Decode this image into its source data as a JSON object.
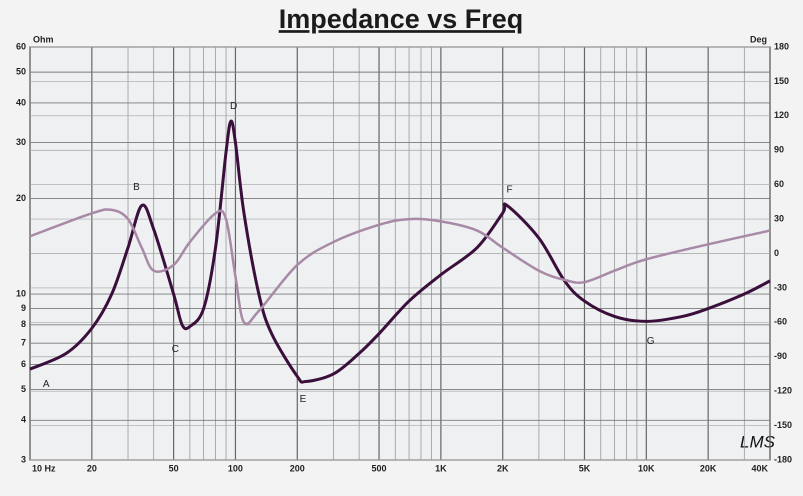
{
  "chart_data": {
    "type": "line",
    "title": "Impedance vs Freq",
    "y_label": "Ohm",
    "y2_label": "Deg",
    "signature": "LMS",
    "log_x": true,
    "log_y": true,
    "grid": true,
    "xlim": [
      10,
      40000
    ],
    "xticks": [
      {
        "value": 10,
        "label": "10 Hz"
      },
      20,
      50,
      100,
      200,
      500,
      {
        "value": 1000,
        "label": "1K"
      },
      {
        "value": 2000,
        "label": "2K"
      },
      {
        "value": 5000,
        "label": "5K"
      },
      {
        "value": 10000,
        "label": "10K"
      },
      {
        "value": 20000,
        "label": "20K"
      },
      {
        "value": 40000,
        "label": "40K"
      }
    ],
    "x_minor_ticks": [
      30,
      40,
      60,
      70,
      80,
      90,
      300,
      400,
      600,
      700,
      800,
      900,
      3000,
      4000,
      6000,
      7000,
      8000,
      9000,
      30000
    ],
    "ylim": [
      3,
      60
    ],
    "yticks": [
      3,
      4,
      5,
      6,
      7,
      8,
      9,
      10,
      20,
      30,
      40,
      50,
      60
    ],
    "y2lim": [
      -180,
      180
    ],
    "y2ticks": [
      -180,
      -150,
      -120,
      -90,
      -60,
      -30,
      0,
      30,
      60,
      90,
      120,
      150,
      180
    ],
    "series": [
      {
        "color": "#3a0f3c",
        "axis": "y",
        "x": [
          10,
          15,
          20,
          25,
          30,
          35,
          40,
          50,
          55,
          60,
          70,
          80,
          90,
          95,
          100,
          110,
          130,
          150,
          200,
          220,
          300,
          400,
          500,
          700,
          1000,
          1500,
          2000,
          2100,
          3000,
          4000,
          5000,
          7000,
          10000,
          15000,
          20000,
          30000,
          40000
        ],
        "values": [
          5.8,
          6.5,
          7.8,
          10,
          14,
          19,
          16,
          10,
          8,
          7.9,
          9,
          14,
          28,
          35,
          30,
          18,
          10,
          7.5,
          5.5,
          5.3,
          5.6,
          6.5,
          7.5,
          9.5,
          11.5,
          14,
          18,
          19,
          15,
          11,
          9.5,
          8.5,
          8.2,
          8.5,
          9,
          10,
          11
        ]
      },
      {
        "color": "#a88aa6",
        "axis": "y2",
        "x": [
          10,
          20,
          25,
          30,
          35,
          40,
          50,
          60,
          80,
          90,
          100,
          110,
          130,
          200,
          300,
          500,
          700,
          1000,
          1500,
          2000,
          3000,
          4000,
          5000,
          7000,
          10000,
          20000,
          40000
        ],
        "values": [
          15,
          35,
          38,
          30,
          5,
          -15,
          -10,
          10,
          35,
          30,
          -20,
          -60,
          -50,
          -10,
          10,
          25,
          30,
          28,
          20,
          5,
          -15,
          -23,
          -25,
          -15,
          -5,
          8,
          20
        ]
      }
    ],
    "annotations": [
      {
        "text": "A",
        "x": 12,
        "y": 5.2
      },
      {
        "text": "B",
        "x": 33,
        "y": 21.7
      },
      {
        "text": "C",
        "x": 51,
        "y": 6.7
      },
      {
        "text": "D",
        "x": 98,
        "y": 39
      },
      {
        "text": "E",
        "x": 213,
        "y": 4.65
      },
      {
        "text": "F",
        "x": 2160,
        "y": 21.3
      },
      {
        "text": "G",
        "x": 10500,
        "y": 7.1
      }
    ]
  }
}
